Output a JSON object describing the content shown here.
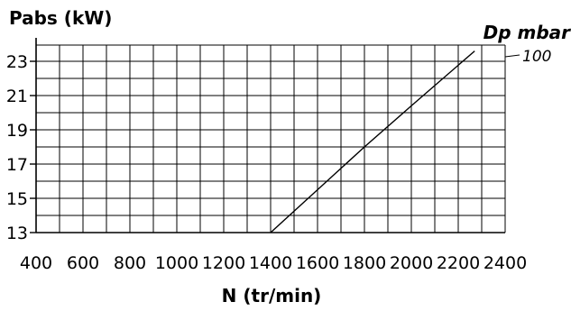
{
  "chart_data": {
    "type": "line",
    "ylabel": "Pabs (kW)",
    "xlabel": "N (tr/min)",
    "secondary_label": "Dp mbar",
    "xlim": [
      400,
      2400
    ],
    "ylim": [
      13,
      24
    ],
    "x_ticks": [
      400,
      600,
      800,
      1000,
      1200,
      1400,
      1600,
      1800,
      2000,
      2200,
      2400
    ],
    "y_ticks": [
      13,
      15,
      17,
      19,
      21,
      23
    ],
    "x_tick_labels": [
      "400",
      "600",
      "800",
      "1000",
      "1200",
      "1400",
      "1600",
      "1800",
      "2000",
      "2200",
      "2400"
    ],
    "y_tick_labels": [
      "13",
      "15",
      "17",
      "19",
      "21",
      "23"
    ],
    "grid": true,
    "series": [
      {
        "name": "100",
        "x": [
          1400,
          1600,
          1800,
          2000,
          2270
        ],
        "y": [
          13.0,
          15.5,
          18.0,
          20.4,
          23.6
        ]
      }
    ]
  }
}
